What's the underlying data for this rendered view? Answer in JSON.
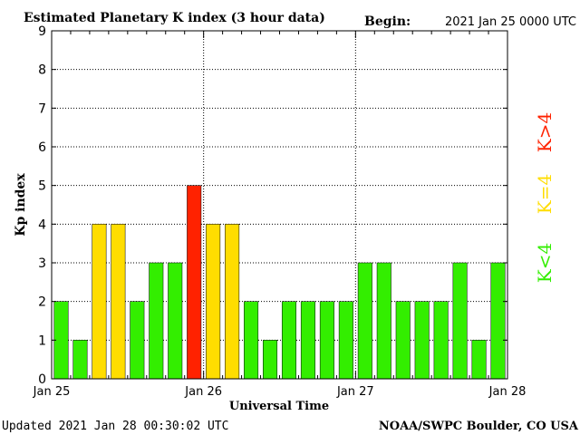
{
  "chart_data": {
    "type": "bar",
    "title": "Estimated Planetary K index (3 hour data)",
    "begin_label": "Begin:",
    "begin_value": "2021 Jan 25 0000 UTC",
    "xlabel": "Universal Time",
    "ylabel": "Kp index",
    "ylim": [
      0,
      9
    ],
    "yticks": [
      "0",
      "1",
      "2",
      "3",
      "4",
      "5",
      "6",
      "7",
      "8",
      "9"
    ],
    "xlim": [
      0,
      24
    ],
    "xticks": [
      {
        "pos": 0,
        "label": "Jan 25"
      },
      {
        "pos": 8,
        "label": "Jan 26"
      },
      {
        "pos": 16,
        "label": "Jan 27"
      },
      {
        "pos": 24,
        "label": "Jan 28"
      }
    ],
    "grid": true,
    "interval_hours": 3,
    "values": [
      2,
      1,
      4,
      4,
      2,
      3,
      3,
      5,
      4,
      4,
      2,
      1,
      2,
      2,
      2,
      2,
      3,
      3,
      2,
      2,
      2,
      3,
      1,
      3
    ],
    "legend": [
      {
        "label": "K<4",
        "color": "#33ee00"
      },
      {
        "label": "K=4",
        "color": "#ffdd00"
      },
      {
        "label": "K>4",
        "color": "#ff2200"
      }
    ],
    "legend_placement": "right"
  },
  "colors": {
    "low": "#33ee00",
    "moderate": "#ffdd00",
    "high": "#ff2200"
  },
  "footer": {
    "updated": "Updated 2021 Jan 28 00:30:02 UTC",
    "source": "NOAA/SWPC Boulder, CO USA"
  }
}
